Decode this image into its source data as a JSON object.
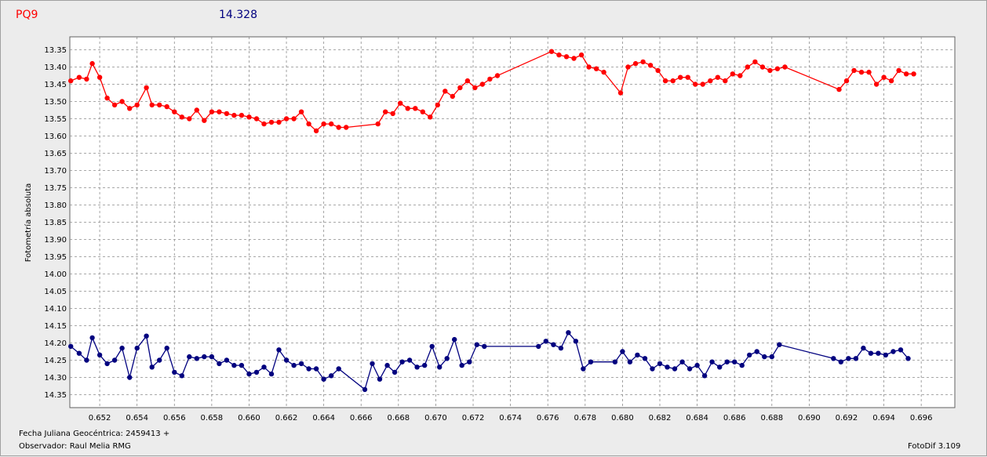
{
  "header": {
    "star": "PQ9",
    "value": "14.328"
  },
  "footer": {
    "date_label": "Fecha Juliana Geocéntrica: 2459413 +",
    "observer_label": "Observador: Raul Melia RMG",
    "software": "FotoDif 3.109"
  },
  "colors": {
    "series_red": "#ff0000",
    "series_blue": "#00007f",
    "grid": "#8c8c8c",
    "plot_bg": "#ffffff"
  },
  "chart_data": {
    "type": "line",
    "ylabel": "Fotometría absoluta",
    "xlabel": "",
    "title": "",
    "y_inverted": true,
    "grid": true,
    "xlim": [
      0.6504,
      0.6978
    ],
    "ylim": [
      13.3125,
      14.3875
    ],
    "x_ticks": [
      0.652,
      0.654,
      0.656,
      0.658,
      0.66,
      0.662,
      0.664,
      0.666,
      0.668,
      0.67,
      0.672,
      0.674,
      0.676,
      0.678,
      0.68,
      0.682,
      0.684,
      0.686,
      0.688,
      0.69,
      0.692,
      0.694,
      0.696
    ],
    "x_tick_labels": [
      "0.652",
      "0.654",
      "0.656",
      "0.658",
      "0.660",
      "0.662",
      "0.664",
      "0.666",
      "0.668",
      "0.670",
      "0.672",
      "0.674",
      "0.676",
      "0.678",
      "0.680",
      "0.682",
      "0.684",
      "0.686",
      "0.688",
      "0.690",
      "0.692",
      "0.694",
      "0.696"
    ],
    "y_ticks": [
      13.35,
      13.4,
      13.45,
      13.5,
      13.55,
      13.6,
      13.65,
      13.7,
      13.75,
      13.8,
      13.85,
      13.9,
      13.95,
      14.0,
      14.05,
      14.1,
      14.15,
      14.2,
      14.25,
      14.3,
      14.35
    ],
    "y_tick_labels": [
      "13.35",
      "13.40",
      "13.45",
      "13.50",
      "13.55",
      "13.60",
      "13.65",
      "13.70",
      "13.75",
      "13.80",
      "13.85",
      "13.90",
      "13.95",
      "14.00",
      "14.05",
      "14.10",
      "14.15",
      "14.20",
      "14.25",
      "14.30",
      "14.35"
    ],
    "series": [
      {
        "color": "#ff0000",
        "points": [
          [
            0.65045,
            13.44
          ],
          [
            0.6509,
            13.43
          ],
          [
            0.6513,
            13.435
          ],
          [
            0.6516,
            13.39
          ],
          [
            0.652,
            13.43
          ],
          [
            0.6524,
            13.49
          ],
          [
            0.6528,
            13.51
          ],
          [
            0.6532,
            13.5
          ],
          [
            0.6536,
            13.52
          ],
          [
            0.654,
            13.51
          ],
          [
            0.6545,
            13.46
          ],
          [
            0.6548,
            13.51
          ],
          [
            0.6552,
            13.51
          ],
          [
            0.6556,
            13.515
          ],
          [
            0.656,
            13.53
          ],
          [
            0.6564,
            13.545
          ],
          [
            0.6568,
            13.55
          ],
          [
            0.6572,
            13.525
          ],
          [
            0.6576,
            13.555
          ],
          [
            0.658,
            13.53
          ],
          [
            0.6584,
            13.53
          ],
          [
            0.6588,
            13.535
          ],
          [
            0.6592,
            13.54
          ],
          [
            0.6596,
            13.54
          ],
          [
            0.66,
            13.545
          ],
          [
            0.6604,
            13.55
          ],
          [
            0.6608,
            13.565
          ],
          [
            0.6612,
            13.56
          ],
          [
            0.6616,
            13.56
          ],
          [
            0.662,
            13.55
          ],
          [
            0.6624,
            13.55
          ],
          [
            0.6628,
            13.53
          ],
          [
            0.6632,
            13.565
          ],
          [
            0.6636,
            13.585
          ],
          [
            0.664,
            13.565
          ],
          [
            0.6644,
            13.565
          ],
          [
            0.6648,
            13.575
          ],
          [
            0.6652,
            13.575
          ],
          [
            0.6669,
            13.565
          ],
          [
            0.6673,
            13.53
          ],
          [
            0.6677,
            13.535
          ],
          [
            0.6681,
            13.505
          ],
          [
            0.6685,
            13.52
          ],
          [
            0.6689,
            13.52
          ],
          [
            0.6693,
            13.53
          ],
          [
            0.6697,
            13.545
          ],
          [
            0.6701,
            13.51
          ],
          [
            0.6705,
            13.47
          ],
          [
            0.6709,
            13.485
          ],
          [
            0.6713,
            13.46
          ],
          [
            0.6717,
            13.44
          ],
          [
            0.6721,
            13.46
          ],
          [
            0.6725,
            13.45
          ],
          [
            0.6729,
            13.435
          ],
          [
            0.6733,
            13.425
          ],
          [
            0.6762,
            13.355
          ],
          [
            0.6766,
            13.365
          ],
          [
            0.677,
            13.37
          ],
          [
            0.6774,
            13.375
          ],
          [
            0.6778,
            13.365
          ],
          [
            0.6782,
            13.4
          ],
          [
            0.6786,
            13.405
          ],
          [
            0.679,
            13.415
          ],
          [
            0.6799,
            13.475
          ],
          [
            0.6803,
            13.4
          ],
          [
            0.6807,
            13.39
          ],
          [
            0.6811,
            13.385
          ],
          [
            0.6815,
            13.395
          ],
          [
            0.6819,
            13.41
          ],
          [
            0.6823,
            13.44
          ],
          [
            0.6827,
            13.44
          ],
          [
            0.6831,
            13.43
          ],
          [
            0.6835,
            13.43
          ],
          [
            0.6839,
            13.45
          ],
          [
            0.6843,
            13.45
          ],
          [
            0.6847,
            13.44
          ],
          [
            0.6851,
            13.43
          ],
          [
            0.6855,
            13.44
          ],
          [
            0.6859,
            13.42
          ],
          [
            0.6863,
            13.425
          ],
          [
            0.6867,
            13.4
          ],
          [
            0.6871,
            13.385
          ],
          [
            0.6875,
            13.4
          ],
          [
            0.6879,
            13.41
          ],
          [
            0.6883,
            13.405
          ],
          [
            0.6887,
            13.4
          ],
          [
            0.6916,
            13.465
          ],
          [
            0.692,
            13.44
          ],
          [
            0.6924,
            13.41
          ],
          [
            0.6928,
            13.415
          ],
          [
            0.6932,
            13.415
          ],
          [
            0.6936,
            13.45
          ],
          [
            0.694,
            13.43
          ],
          [
            0.6944,
            13.44
          ],
          [
            0.6948,
            13.41
          ],
          [
            0.6952,
            13.42
          ],
          [
            0.6956,
            13.42
          ]
        ]
      },
      {
        "color": "#00007f",
        "points": [
          [
            0.65045,
            14.21
          ],
          [
            0.6509,
            14.23
          ],
          [
            0.6513,
            14.25
          ],
          [
            0.6516,
            14.185
          ],
          [
            0.652,
            14.235
          ],
          [
            0.6524,
            14.26
          ],
          [
            0.6528,
            14.25
          ],
          [
            0.6532,
            14.215
          ],
          [
            0.6536,
            14.3
          ],
          [
            0.654,
            14.215
          ],
          [
            0.6545,
            14.18
          ],
          [
            0.6548,
            14.27
          ],
          [
            0.6552,
            14.25
          ],
          [
            0.6556,
            14.215
          ],
          [
            0.656,
            14.285
          ],
          [
            0.6564,
            14.295
          ],
          [
            0.6568,
            14.24
          ],
          [
            0.6572,
            14.245
          ],
          [
            0.6576,
            14.24
          ],
          [
            0.658,
            14.24
          ],
          [
            0.6584,
            14.26
          ],
          [
            0.6588,
            14.25
          ],
          [
            0.6592,
            14.265
          ],
          [
            0.6596,
            14.265
          ],
          [
            0.66,
            14.29
          ],
          [
            0.6604,
            14.285
          ],
          [
            0.6608,
            14.27
          ],
          [
            0.6612,
            14.29
          ],
          [
            0.6616,
            14.22
          ],
          [
            0.662,
            14.25
          ],
          [
            0.6624,
            14.265
          ],
          [
            0.6628,
            14.26
          ],
          [
            0.6632,
            14.275
          ],
          [
            0.6636,
            14.275
          ],
          [
            0.664,
            14.305
          ],
          [
            0.6644,
            14.295
          ],
          [
            0.6648,
            14.275
          ],
          [
            0.6662,
            14.335
          ],
          [
            0.6666,
            14.26
          ],
          [
            0.667,
            14.305
          ],
          [
            0.6674,
            14.265
          ],
          [
            0.6678,
            14.285
          ],
          [
            0.6682,
            14.255
          ],
          [
            0.6686,
            14.25
          ],
          [
            0.669,
            14.27
          ],
          [
            0.6694,
            14.265
          ],
          [
            0.6698,
            14.21
          ],
          [
            0.6702,
            14.27
          ],
          [
            0.6706,
            14.245
          ],
          [
            0.671,
            14.19
          ],
          [
            0.6714,
            14.265
          ],
          [
            0.6718,
            14.255
          ],
          [
            0.6722,
            14.205
          ],
          [
            0.6726,
            14.21
          ],
          [
            0.6755,
            14.21
          ],
          [
            0.6759,
            14.195
          ],
          [
            0.6763,
            14.205
          ],
          [
            0.6767,
            14.215
          ],
          [
            0.6771,
            14.17
          ],
          [
            0.6775,
            14.195
          ],
          [
            0.6779,
            14.275
          ],
          [
            0.6783,
            14.255
          ],
          [
            0.6796,
            14.255
          ],
          [
            0.68,
            14.225
          ],
          [
            0.6804,
            14.255
          ],
          [
            0.6808,
            14.235
          ],
          [
            0.6812,
            14.245
          ],
          [
            0.6816,
            14.275
          ],
          [
            0.682,
            14.26
          ],
          [
            0.6824,
            14.27
          ],
          [
            0.6828,
            14.275
          ],
          [
            0.6832,
            14.255
          ],
          [
            0.6836,
            14.275
          ],
          [
            0.684,
            14.265
          ],
          [
            0.6844,
            14.295
          ],
          [
            0.6848,
            14.255
          ],
          [
            0.6852,
            14.27
          ],
          [
            0.6856,
            14.255
          ],
          [
            0.686,
            14.255
          ],
          [
            0.6864,
            14.265
          ],
          [
            0.6868,
            14.235
          ],
          [
            0.6872,
            14.225
          ],
          [
            0.6876,
            14.24
          ],
          [
            0.688,
            14.24
          ],
          [
            0.6884,
            14.205
          ],
          [
            0.6913,
            14.245
          ],
          [
            0.6917,
            14.255
          ],
          [
            0.6921,
            14.245
          ],
          [
            0.6925,
            14.245
          ],
          [
            0.6929,
            14.215
          ],
          [
            0.6933,
            14.23
          ],
          [
            0.6937,
            14.23
          ],
          [
            0.6941,
            14.235
          ],
          [
            0.6945,
            14.225
          ],
          [
            0.6949,
            14.22
          ],
          [
            0.6953,
            14.245
          ]
        ]
      }
    ]
  }
}
